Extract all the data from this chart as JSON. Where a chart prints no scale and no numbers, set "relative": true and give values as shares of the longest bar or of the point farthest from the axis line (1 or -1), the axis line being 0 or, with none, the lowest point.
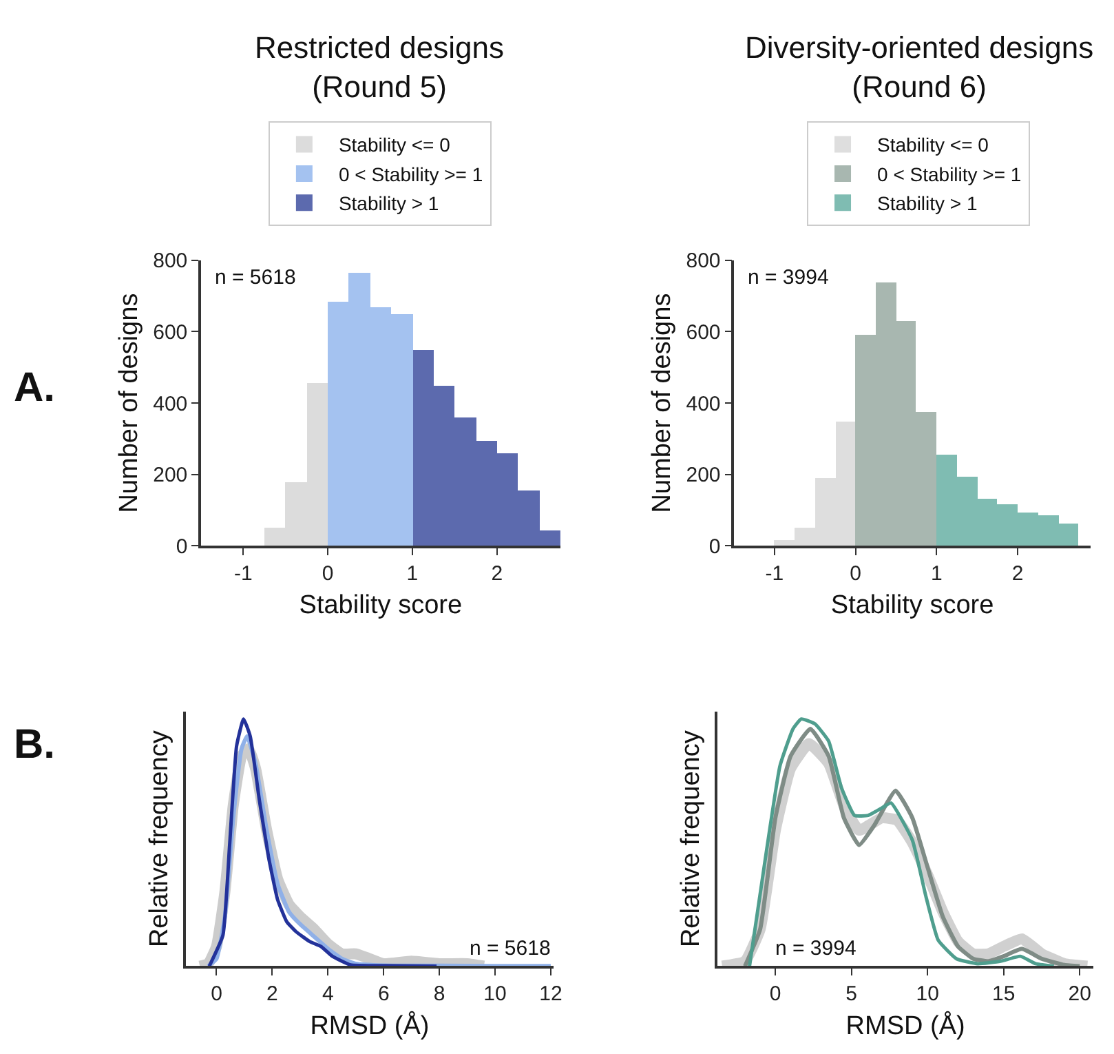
{
  "chart_data": [
    {
      "type": "histogram",
      "title": "Restricted designs\n(Round 5)",
      "xlabel": "Stability score",
      "ylabel": "Number of designs",
      "annotations": [
        "A.",
        "n = 5618"
      ],
      "bins": [
        -0.75,
        -0.5,
        -0.25,
        0,
        0.25,
        0.5,
        0.75,
        1,
        1.25,
        1.5,
        1.75,
        2,
        2.25,
        2.5,
        2.75
      ],
      "xlim": [
        -1.5,
        2.75
      ],
      "xticks": [
        -1,
        0,
        1,
        2
      ],
      "ylim": [
        0,
        800
      ],
      "yticks": [
        0,
        200,
        400,
        600,
        800
      ],
      "legend": "top",
      "series": [
        {
          "name": "Stability <= 0",
          "color": "#dcdcdc",
          "values": [
            50,
            180,
            455,
            null,
            null,
            null,
            null,
            null,
            null,
            null,
            null,
            null,
            null,
            null
          ]
        },
        {
          "name": "0 < Stability >= 1",
          "color": "#a4c2f0",
          "values": [
            null,
            null,
            null,
            685,
            765,
            670,
            650,
            null,
            null,
            null,
            null,
            null,
            null,
            null
          ]
        },
        {
          "name": "Stability > 1",
          "color": "#5c6aae",
          "values": [
            null,
            null,
            null,
            null,
            null,
            null,
            null,
            550,
            450,
            360,
            295,
            260,
            155,
            45
          ]
        }
      ]
    },
    {
      "type": "histogram",
      "title": "Diversity-oriented designs\n(Round 6)",
      "xlabel": "Stability score",
      "ylabel": "Number of designs",
      "annotations": [
        "n = 3994"
      ],
      "bins": [
        -1,
        -0.75,
        -0.5,
        -0.25,
        0,
        0.25,
        0.5,
        0.75,
        1,
        1.25,
        1.5,
        1.75,
        2,
        2.25,
        2.5,
        2.75
      ],
      "xlim": [
        -1.5,
        2.9
      ],
      "xticks": [
        -1,
        0,
        1,
        2
      ],
      "ylim": [
        0,
        800
      ],
      "yticks": [
        0,
        200,
        400,
        600,
        800
      ],
      "legend": "top",
      "series": [
        {
          "name": "Stability <= 0",
          "color": "#dedede",
          "values": [
            17,
            50,
            192,
            348,
            null,
            null,
            null,
            null,
            null,
            null,
            null,
            null,
            null,
            null,
            null
          ]
        },
        {
          "name": "0 < Stability >= 1",
          "color": "#a8b7b0",
          "values": [
            null,
            null,
            null,
            null,
            590,
            740,
            629,
            375,
            null,
            null,
            null,
            null,
            null,
            null,
            null
          ]
        },
        {
          "name": "Stability > 1",
          "color": "#7fbcb2",
          "values": [
            null,
            null,
            null,
            null,
            null,
            null,
            null,
            null,
            256,
            195,
            134,
            117,
            94,
            85,
            61
          ]
        }
      ]
    },
    {
      "type": "line",
      "relative": true,
      "xlabel": "RMSD (Å)",
      "ylabel": "Relative frequency",
      "annotations": [
        "B.",
        "n = 5618"
      ],
      "xlim": [
        -1.1,
        12.1
      ],
      "xticks": [
        0,
        2,
        4,
        6,
        8,
        10,
        12
      ],
      "legend": false,
      "marker": "none",
      "series": [
        {
          "color": "#cccccc",
          "x": [
            -0.6,
            -0.3,
            0,
            0.3,
            0.6,
            0.9,
            1.15,
            1.4,
            1.8,
            2.2,
            2.6,
            3,
            3.5,
            4,
            4.5,
            5,
            5.5,
            6,
            7,
            8,
            9,
            9.6
          ],
          "values": [
            0,
            0.01,
            0.08,
            0.3,
            0.65,
            0.85,
            0.88,
            0.8,
            0.55,
            0.35,
            0.25,
            0.2,
            0.15,
            0.09,
            0.05,
            0.05,
            0.03,
            0.01,
            0.02,
            0.01,
            0.01,
            0
          ]
        },
        {
          "color": "#8fb0e8",
          "x": [
            -0.3,
            0,
            0.3,
            0.6,
            0.9,
            1.1,
            1.4,
            1.8,
            2.2,
            2.6,
            3,
            3.5,
            4,
            4.5,
            5,
            6,
            8,
            10,
            12
          ],
          "values": [
            0,
            0.03,
            0.2,
            0.6,
            0.88,
            0.93,
            0.82,
            0.55,
            0.33,
            0.22,
            0.17,
            0.12,
            0.07,
            0.03,
            0.01,
            0.003,
            0.002,
            0.001,
            0.001
          ]
        },
        {
          "color": "#23329a",
          "x": [
            -0.26,
            0.23,
            0.47,
            0.72,
            0.97,
            1.21,
            1.54,
            1.87,
            2.19,
            2.52,
            2.85,
            3.34,
            3.75,
            4.16,
            4.81,
            6.1,
            7.9
          ],
          "values": [
            0,
            0.125,
            0.49,
            0.89,
            1,
            0.93,
            0.67,
            0.44,
            0.27,
            0.18,
            0.14,
            0.1,
            0.08,
            0.04,
            0.005,
            0.002,
            0
          ]
        }
      ]
    },
    {
      "type": "line",
      "relative": true,
      "xlabel": "RMSD (Å)",
      "ylabel": "Relative frequency",
      "annotations": [
        "n = 3994"
      ],
      "xlim": [
        -3.8,
        20.9
      ],
      "xticks": [
        0,
        5,
        10,
        15,
        20
      ],
      "legend": false,
      "marker": "none",
      "series": [
        {
          "color": "#d0d0d0",
          "x": [
            -3.5,
            -2,
            -1,
            0,
            1,
            2.2,
            3.5,
            4.5,
            5.5,
            7,
            8,
            9,
            10,
            11,
            12,
            13,
            14,
            15,
            16.2,
            17.5,
            19,
            20.5
          ],
          "values": [
            0,
            0.02,
            0.15,
            0.55,
            0.8,
            0.9,
            0.82,
            0.65,
            0.55,
            0.6,
            0.59,
            0.5,
            0.37,
            0.22,
            0.1,
            0.05,
            0.05,
            0.08,
            0.11,
            0.05,
            0.01,
            0
          ]
        },
        {
          "color": "#7f8c86",
          "x": [
            -2,
            -1,
            0,
            1,
            2.3,
            3.5,
            4.5,
            5.5,
            6.5,
            7.9,
            9,
            10,
            11,
            12,
            13,
            14,
            15,
            16.2,
            17.5,
            19,
            20
          ],
          "values": [
            0,
            0.15,
            0.6,
            0.85,
            0.96,
            0.85,
            0.6,
            0.49,
            0.57,
            0.71,
            0.6,
            0.4,
            0.2,
            0.08,
            0.03,
            0.02,
            0.04,
            0.07,
            0.03,
            0.005,
            0
          ]
        },
        {
          "color": "#4f9e8e",
          "x": [
            -1.7,
            -0.6,
            0.3,
            1.16,
            1.7,
            2.6,
            3.5,
            4.35,
            5.2,
            6.1,
            7,
            7.6,
            9,
            9.9,
            10.7,
            11.9,
            13.3,
            14.8,
            16.1,
            17.1,
            18.3
          ],
          "values": [
            0,
            0.46,
            0.81,
            0.96,
            1,
            0.98,
            0.91,
            0.72,
            0.61,
            0.61,
            0.64,
            0.66,
            0.51,
            0.28,
            0.105,
            0.03,
            0.01,
            0.02,
            0.04,
            0.01,
            0
          ]
        }
      ]
    }
  ]
}
